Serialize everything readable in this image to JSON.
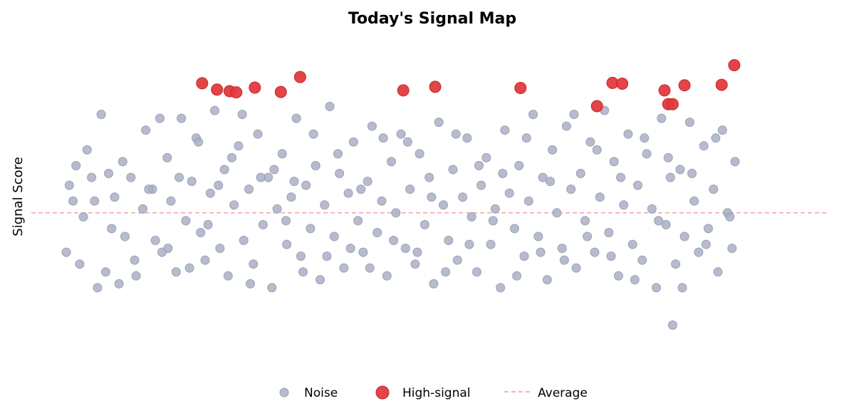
{
  "chart_data": {
    "type": "scatter",
    "title": "Today's Signal Map",
    "xlabel": "",
    "ylabel": "Signal Score",
    "x_ticks_visible": false,
    "y_ticks_visible": false,
    "grid": false,
    "xlim": [
      0,
      100
    ],
    "ylim": [
      -4,
      4.5
    ],
    "legend": {
      "placement": "bottom-center",
      "entries": [
        "Noise",
        "High-signal",
        "Average"
      ]
    },
    "colors": {
      "noise": "#a9b0c4",
      "high_signal": "#e03a3e",
      "average": "#e88a8c"
    },
    "average": 0.0,
    "series": [
      {
        "name": "High-signal",
        "points": [
          [
            18.6,
            3.29
          ],
          [
            20.6,
            3.13
          ],
          [
            22.3,
            3.09
          ],
          [
            23.2,
            3.06
          ],
          [
            25.7,
            3.18
          ],
          [
            29.2,
            3.07
          ],
          [
            31.8,
            3.45
          ],
          [
            45.7,
            3.11
          ],
          [
            50.0,
            3.2
          ],
          [
            61.5,
            3.17
          ],
          [
            71.8,
            2.71
          ],
          [
            73.9,
            3.3
          ],
          [
            75.2,
            3.28
          ],
          [
            80.9,
            3.11
          ],
          [
            81.4,
            2.76
          ],
          [
            82.0,
            2.76
          ],
          [
            83.6,
            3.24
          ],
          [
            88.6,
            3.25
          ],
          [
            90.3,
            3.75
          ]
        ]
      },
      {
        "name": "Noise",
        "points": [
          [
            0.7,
            0.7
          ],
          [
            0.3,
            -1.0
          ],
          [
            1.6,
            1.2
          ],
          [
            2.6,
            -0.1
          ],
          [
            3.1,
            1.6
          ],
          [
            4.1,
            0.3
          ],
          [
            4.5,
            -1.9
          ],
          [
            5.6,
            -1.5
          ],
          [
            6.0,
            1.0
          ],
          [
            6.8,
            0.4
          ],
          [
            7.4,
            -1.8
          ],
          [
            8.2,
            -0.6
          ],
          [
            9.0,
            0.9
          ],
          [
            9.5,
            -1.2
          ],
          [
            10.6,
            0.1
          ],
          [
            11.0,
            2.1
          ],
          [
            11.9,
            0.6
          ],
          [
            12.3,
            -0.7
          ],
          [
            13.2,
            -1.0
          ],
          [
            13.9,
            1.4
          ],
          [
            14.4,
            0.3
          ],
          [
            15.1,
            -1.5
          ],
          [
            15.8,
            2.4
          ],
          [
            16.4,
            -0.2
          ],
          [
            17.2,
            0.8
          ],
          [
            17.8,
            1.9
          ],
          [
            18.4,
            -0.5
          ],
          [
            19.0,
            -1.2
          ],
          [
            19.7,
            0.5
          ],
          [
            20.3,
            2.6
          ],
          [
            21.0,
            -0.9
          ],
          [
            21.6,
            1.1
          ],
          [
            22.1,
            -1.6
          ],
          [
            22.9,
            0.2
          ],
          [
            23.5,
            1.7
          ],
          [
            24.2,
            -0.7
          ],
          [
            24.9,
            0.6
          ],
          [
            25.5,
            -1.3
          ],
          [
            26.1,
            2.0
          ],
          [
            26.8,
            -0.3
          ],
          [
            27.5,
            0.9
          ],
          [
            28.0,
            -1.9
          ],
          [
            28.7,
            0.1
          ],
          [
            29.4,
            1.5
          ],
          [
            30.0,
            -0.8
          ],
          [
            30.6,
            0.4
          ],
          [
            31.3,
            2.4
          ],
          [
            31.9,
            -1.1
          ],
          [
            32.6,
            0.7
          ],
          [
            33.2,
            -0.4
          ],
          [
            33.9,
            1.2
          ],
          [
            34.5,
            -1.7
          ],
          [
            35.1,
            0.2
          ],
          [
            35.8,
            2.7
          ],
          [
            36.4,
            -0.6
          ],
          [
            37.1,
            1.0
          ],
          [
            37.7,
            -1.4
          ],
          [
            38.3,
            0.5
          ],
          [
            39.0,
            1.8
          ],
          [
            39.6,
            -0.2
          ],
          [
            40.3,
            -1.0
          ],
          [
            40.9,
            0.8
          ],
          [
            41.5,
            2.2
          ],
          [
            42.2,
            -0.5
          ],
          [
            42.8,
            0.3
          ],
          [
            43.5,
            -1.6
          ],
          [
            44.1,
            1.3
          ],
          [
            44.7,
            0.0
          ],
          [
            45.4,
            2.0
          ],
          [
            46.0,
            -0.9
          ],
          [
            46.6,
            0.6
          ],
          [
            47.3,
            -1.3
          ],
          [
            47.9,
            1.5
          ],
          [
            48.6,
            -0.3
          ],
          [
            49.2,
            0.9
          ],
          [
            49.8,
            -1.8
          ],
          [
            50.5,
            2.3
          ],
          [
            51.1,
            0.2
          ],
          [
            51.8,
            -0.7
          ],
          [
            52.4,
            1.1
          ],
          [
            53.0,
            -1.2
          ],
          [
            53.7,
            0.4
          ],
          [
            54.3,
            1.9
          ],
          [
            54.9,
            -0.1
          ],
          [
            55.6,
            -1.5
          ],
          [
            56.2,
            0.7
          ],
          [
            56.9,
            1.4
          ],
          [
            57.5,
            -0.8
          ],
          [
            58.1,
            0.1
          ],
          [
            58.8,
            -1.9
          ],
          [
            59.4,
            2.1
          ],
          [
            60.0,
            0.5
          ],
          [
            60.7,
            -0.4
          ],
          [
            61.3,
            1.2
          ],
          [
            62.0,
            -1.1
          ],
          [
            62.6,
            0.3
          ],
          [
            63.2,
            2.5
          ],
          [
            63.9,
            -0.6
          ],
          [
            64.5,
            0.9
          ],
          [
            65.1,
            -1.7
          ],
          [
            65.8,
            1.6
          ],
          [
            66.4,
            0.0
          ],
          [
            67.1,
            -0.9
          ],
          [
            67.7,
            2.2
          ],
          [
            68.3,
            0.6
          ],
          [
            69.0,
            -1.4
          ],
          [
            69.6,
            1.0
          ],
          [
            70.2,
            -0.2
          ],
          [
            70.9,
            1.8
          ],
          [
            71.5,
            -1.0
          ],
          [
            72.2,
            0.4
          ],
          [
            72.8,
            2.6
          ],
          [
            73.4,
            -0.5
          ],
          [
            74.1,
            1.3
          ],
          [
            74.7,
            -1.6
          ],
          [
            75.4,
            0.2
          ],
          [
            76.0,
            2.0
          ],
          [
            76.6,
            -0.8
          ],
          [
            77.3,
            0.7
          ],
          [
            77.9,
            -1.2
          ],
          [
            78.5,
            1.5
          ],
          [
            79.2,
            0.1
          ],
          [
            79.8,
            -1.9
          ],
          [
            80.5,
            2.4
          ],
          [
            81.1,
            -0.3
          ],
          [
            81.7,
            0.9
          ],
          [
            82.4,
            -1.3
          ],
          [
            83.0,
            1.1
          ],
          [
            83.6,
            -0.6
          ],
          [
            84.3,
            2.3
          ],
          [
            84.9,
            0.3
          ],
          [
            85.5,
            -1.0
          ],
          [
            86.2,
            1.7
          ],
          [
            86.8,
            -0.4
          ],
          [
            87.5,
            0.6
          ],
          [
            88.1,
            -1.5
          ],
          [
            88.7,
            2.1
          ],
          [
            89.4,
            0.0
          ],
          [
            90.0,
            -0.9
          ],
          [
            90.4,
            1.3
          ],
          [
            1.2,
            0.3
          ],
          [
            2.1,
            -1.3
          ],
          [
            3.7,
            0.9
          ],
          [
            5.0,
            2.5
          ],
          [
            6.4,
            -0.4
          ],
          [
            7.9,
            1.3
          ],
          [
            9.7,
            -1.6
          ],
          [
            11.4,
            0.6
          ],
          [
            12.9,
            2.4
          ],
          [
            14.0,
            -0.9
          ],
          [
            15.5,
            0.9
          ],
          [
            16.9,
            -1.4
          ],
          [
            18.1,
            1.8
          ],
          [
            19.4,
            -0.3
          ],
          [
            20.8,
            0.7
          ],
          [
            22.6,
            1.4
          ],
          [
            24.0,
            2.5
          ],
          [
            25.1,
            -1.8
          ],
          [
            26.5,
            0.9
          ],
          [
            28.3,
            1.1
          ],
          [
            29.9,
            -0.2
          ],
          [
            31.0,
            0.8
          ],
          [
            32.2,
            -1.5
          ],
          [
            33.6,
            2.0
          ],
          [
            35.4,
            -1.1
          ],
          [
            36.9,
            1.5
          ],
          [
            38.6,
            -0.9
          ],
          [
            40.0,
            0.6
          ],
          [
            41.2,
            -1.4
          ],
          [
            43.0,
            1.9
          ],
          [
            44.4,
            -0.7
          ],
          [
            46.3,
            1.8
          ],
          [
            47.6,
            -1.0
          ],
          [
            49.5,
            0.4
          ],
          [
            51.4,
            -1.5
          ],
          [
            52.8,
            2.0
          ],
          [
            54.6,
            -0.8
          ],
          [
            55.9,
            1.2
          ],
          [
            57.8,
            -0.2
          ],
          [
            59.1,
            1.0
          ],
          [
            61.0,
            -1.6
          ],
          [
            62.3,
            1.9
          ],
          [
            64.2,
            -1.0
          ],
          [
            65.5,
            0.8
          ],
          [
            67.4,
            -1.2
          ],
          [
            68.7,
            2.5
          ],
          [
            70.5,
            -0.6
          ],
          [
            71.8,
            1.6
          ],
          [
            73.7,
            -1.1
          ],
          [
            75.0,
            0.9
          ],
          [
            76.9,
            -1.7
          ],
          [
            78.2,
            1.9
          ],
          [
            80.1,
            -0.2
          ],
          [
            81.4,
            1.4
          ],
          [
            83.3,
            -1.9
          ],
          [
            84.6,
            1.0
          ],
          [
            86.5,
            -0.8
          ],
          [
            87.8,
            1.9
          ],
          [
            89.7,
            -0.1
          ],
          [
            82.0,
            -2.85
          ]
        ]
      }
    ]
  }
}
